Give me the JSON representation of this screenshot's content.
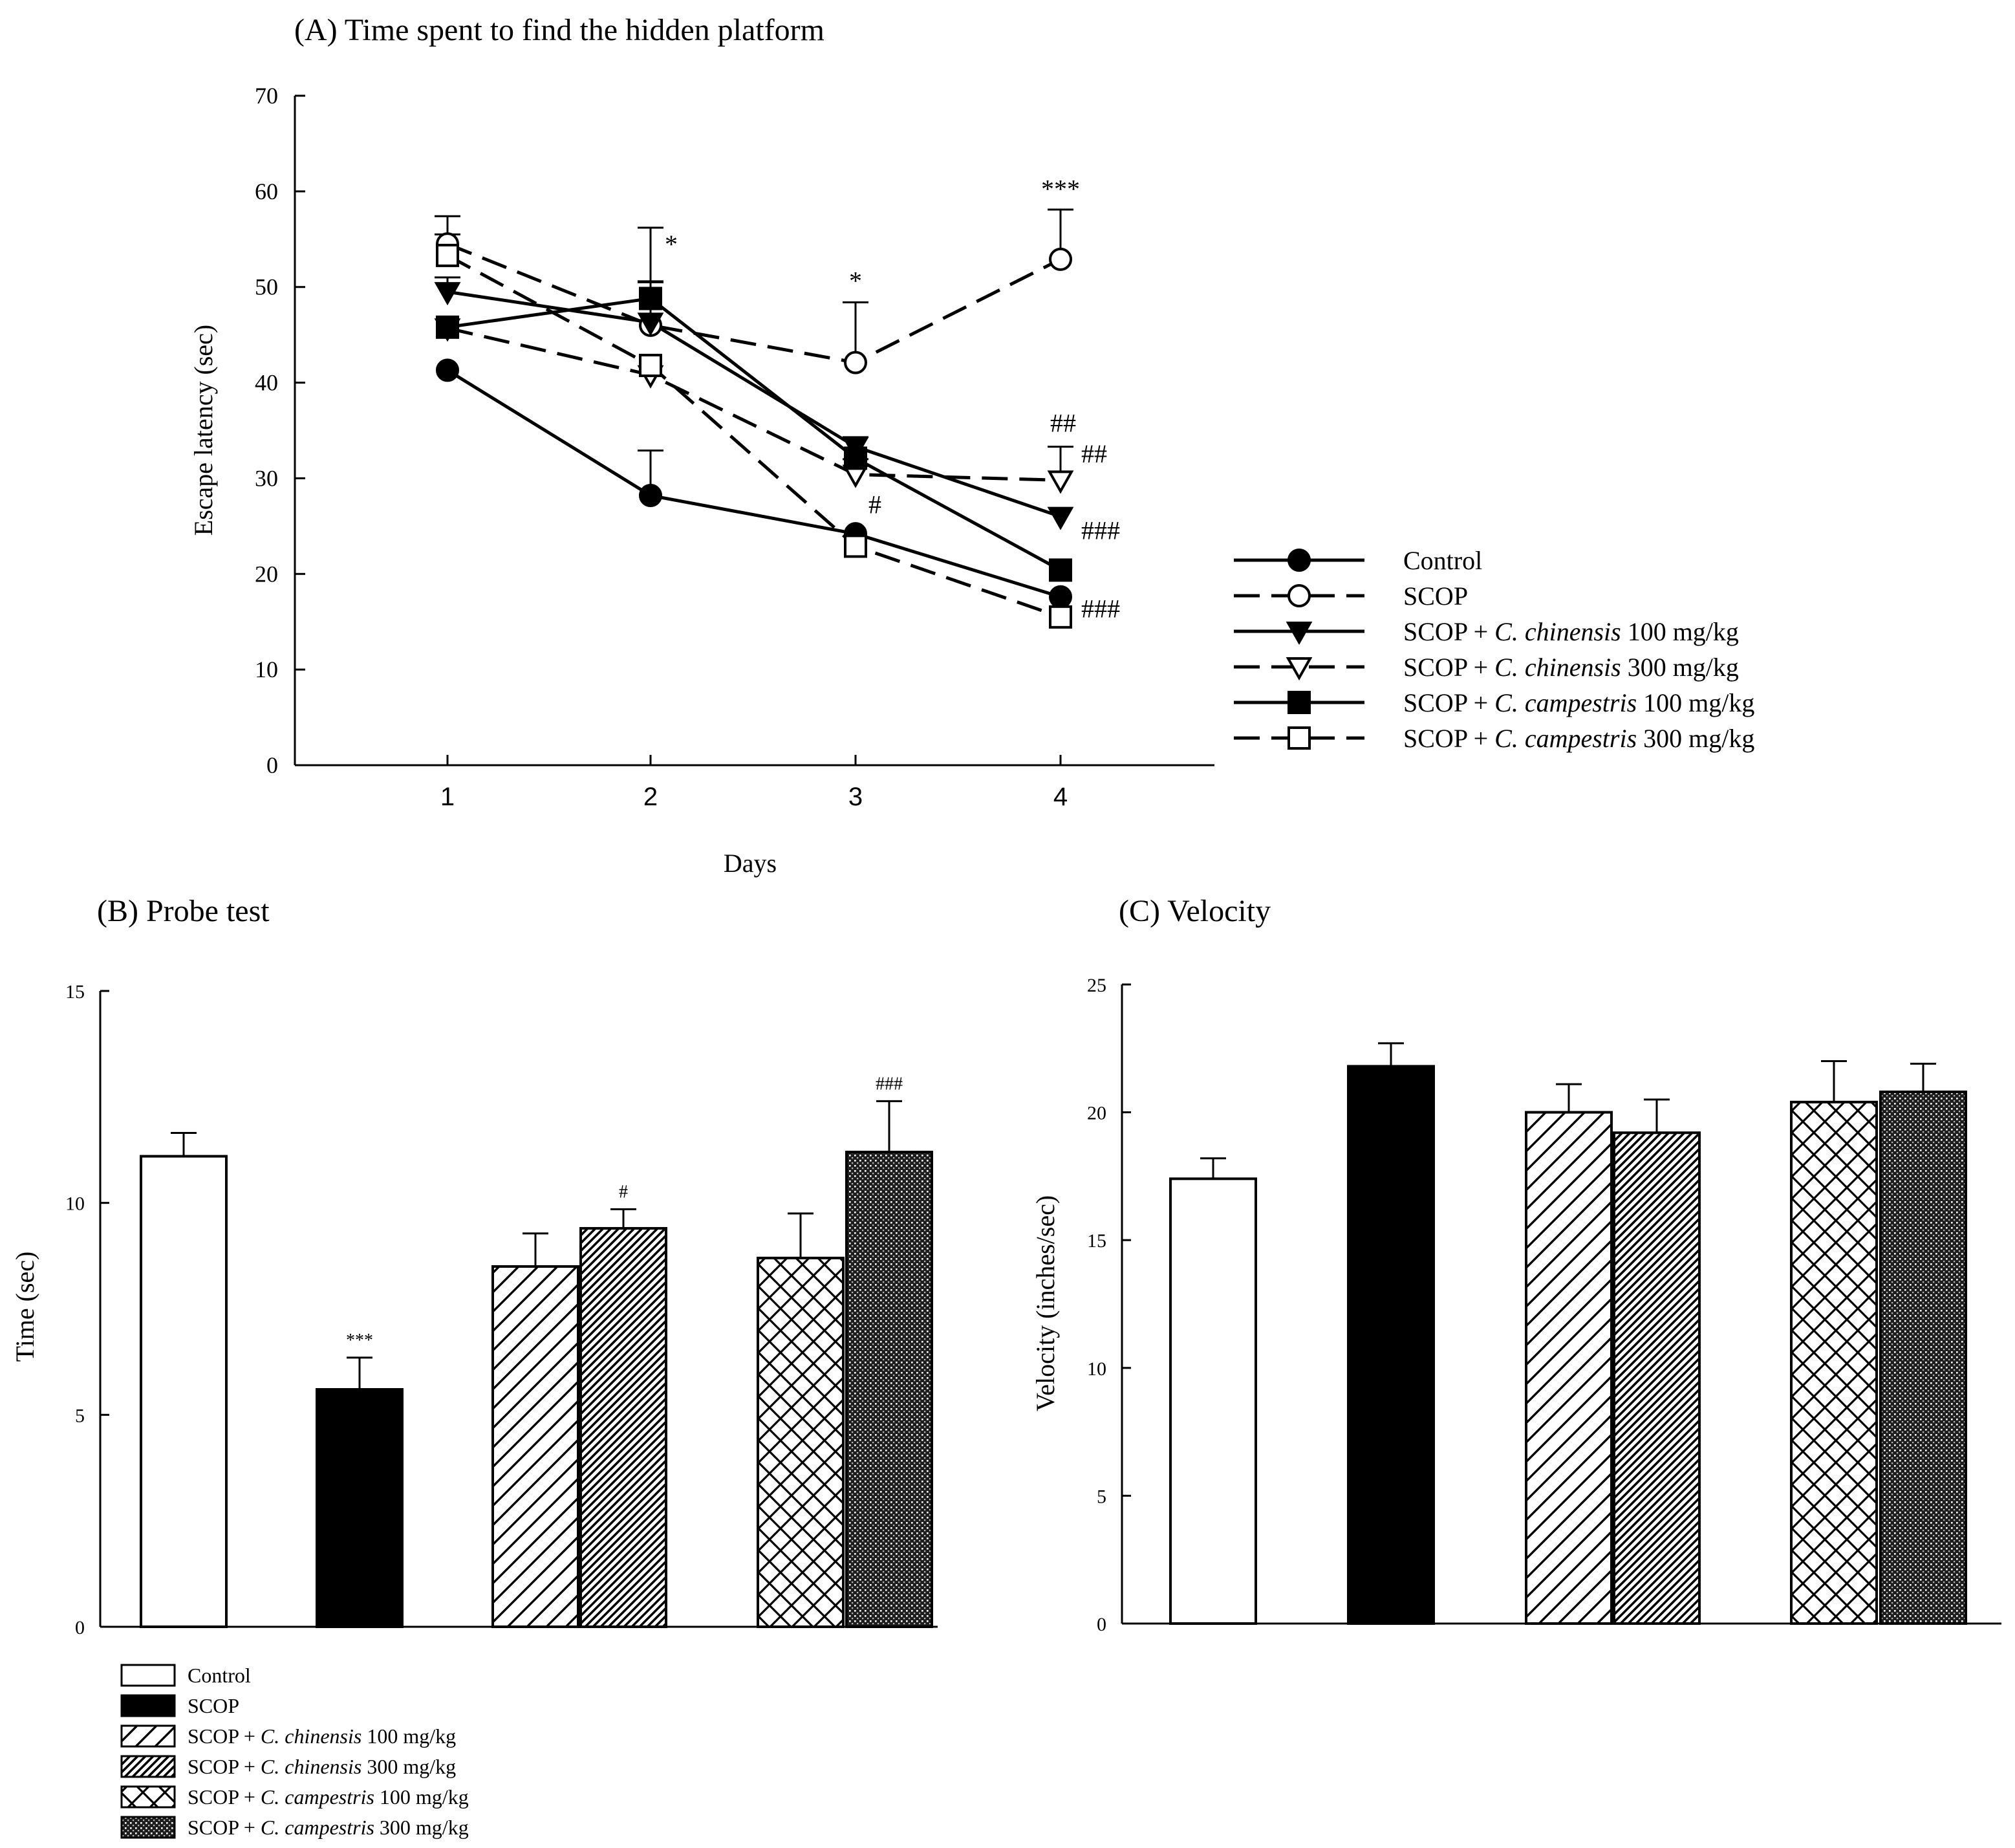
{
  "chart_data": [
    {
      "panel": "A",
      "type": "line",
      "title": "(A) Time spent to find the hidden platform",
      "xlabel": "Days",
      "ylabel": "Escape latency (sec)",
      "x": [
        1,
        2,
        3,
        4
      ],
      "xticks": [
        "1",
        "2",
        "3",
        "4"
      ],
      "ylim": [
        0,
        70
      ],
      "yticks": [
        "0",
        "10",
        "20",
        "30",
        "40",
        "50",
        "60",
        "70"
      ],
      "grid": false,
      "legend_position": "right",
      "series": [
        {
          "name": "Control",
          "marker": "filled-circle",
          "line": "solid",
          "values": [
            41.3,
            28.2,
            24.2,
            17.6
          ],
          "errors": [
            0,
            4.7,
            0,
            0
          ]
        },
        {
          "name": "SCOP",
          "marker": "open-circle",
          "line": "dashed",
          "values": [
            54.5,
            46.0,
            42.1,
            52.9
          ],
          "errors": [
            1.0,
            10.2,
            6.3,
            5.2
          ]
        },
        {
          "name": "SCOP + C. chinensis 100 mg/kg",
          "marker": "filled-triangle",
          "line": "solid",
          "values": [
            49.5,
            46.3,
            33.3,
            26.0
          ],
          "errors": [
            1.5,
            4.2,
            1.0,
            0
          ]
        },
        {
          "name": "SCOP + C. chinensis 300 mg/kg",
          "marker": "open-triangle",
          "line": "dashed",
          "values": [
            45.7,
            40.8,
            30.4,
            29.8
          ],
          "errors": [
            0,
            0,
            1.6,
            3.5
          ]
        },
        {
          "name": "SCOP + C. campestris 100 mg/kg",
          "marker": "filled-square",
          "line": "solid",
          "values": [
            45.8,
            48.8,
            32.1,
            20.4
          ],
          "errors": [
            0,
            1.8,
            0,
            0
          ]
        },
        {
          "name": "SCOP + C. campestris 300 mg/kg",
          "marker": "open-square",
          "line": "dashed",
          "values": [
            53.3,
            41.8,
            22.9,
            15.5
          ],
          "errors": [
            4.1,
            0,
            0,
            0
          ]
        }
      ],
      "legend": {
        "prefix": "SCOP + ",
        "entries": [
          {
            "plain": "Control",
            "species": "",
            "dose": ""
          },
          {
            "plain": "SCOP",
            "species": "",
            "dose": ""
          },
          {
            "plain": "",
            "species": "C. chinensis",
            "dose": " 100 mg/kg"
          },
          {
            "plain": "",
            "species": "C. chinensis",
            "dose": " 300 mg/kg"
          },
          {
            "plain": "",
            "species": "C. campestris",
            "dose": " 100 mg/kg"
          },
          {
            "plain": "",
            "species": "C. campestris",
            "dose": " 300 mg/kg"
          }
        ]
      },
      "annotations": [
        {
          "text": "*",
          "x": 2,
          "y": 54.5
        },
        {
          "text": "*",
          "x": 3,
          "y": 50.7
        },
        {
          "text": "***",
          "x": 4,
          "y": 60.3
        },
        {
          "text": "#",
          "x": 3,
          "y": 27.3
        },
        {
          "text": "##",
          "x": 4,
          "y": 35.8
        },
        {
          "text": "##",
          "x": 4,
          "y": 32.6
        },
        {
          "text": "###",
          "x": 4,
          "y": 24.6
        },
        {
          "text": "###",
          "x": 4,
          "y": 16.4
        }
      ]
    },
    {
      "panel": "B",
      "type": "bar",
      "title": "(B) Probe test",
      "xlabel": "",
      "ylabel": "Time (sec)",
      "ylim": [
        0,
        15
      ],
      "yticks": [
        "0",
        "5",
        "10",
        "15"
      ],
      "categories": [
        "Control",
        "SCOP",
        "SCOP + C. chinensis 100 mg/kg",
        "SCOP + C. chinensis 300 mg/kg",
        "SCOP + C. campestris 100 mg/kg",
        "SCOP + C. campestris 300 mg/kg"
      ],
      "values": [
        11.1,
        5.6,
        8.5,
        9.4,
        8.7,
        11.2
      ],
      "errors": [
        0.55,
        0.75,
        0.78,
        0.45,
        1.05,
        1.2
      ],
      "annotations": [
        "",
        "***",
        "",
        "#",
        "",
        "###"
      ],
      "legend": {
        "prefix": "SCOP + ",
        "entries": [
          {
            "plain": "Control",
            "species": "",
            "dose": ""
          },
          {
            "plain": "SCOP",
            "species": "",
            "dose": ""
          },
          {
            "plain": "",
            "species": "C. chinensis",
            "dose": " 100 mg/kg"
          },
          {
            "plain": "",
            "species": "C. chinensis",
            "dose": " 300 mg/kg"
          },
          {
            "plain": "",
            "species": "C. campestris",
            "dose": " 100 mg/kg"
          },
          {
            "plain": "",
            "species": "C. campestris",
            "dose": " 300 mg/kg"
          }
        ]
      },
      "legend_position": "bottom"
    },
    {
      "panel": "C",
      "type": "bar",
      "title": "(C) Velocity",
      "xlabel": "",
      "ylabel": "Velocity (inches/sec)",
      "ylim": [
        0,
        25
      ],
      "yticks": [
        "0",
        "5",
        "10",
        "15",
        "20",
        "25"
      ],
      "categories": [
        "Control",
        "SCOP",
        "SCOP + C. chinensis 100 mg/kg",
        "SCOP + C. chinensis 300 mg/kg",
        "SCOP + C. campestris 100 mg/kg",
        "SCOP + C. campestris 300 mg/kg"
      ],
      "values": [
        17.4,
        21.8,
        20.0,
        19.2,
        20.4,
        20.8
      ],
      "errors": [
        0.8,
        0.9,
        1.1,
        1.3,
        1.6,
        1.1
      ]
    }
  ],
  "fills": [
    "white",
    "black",
    "diag-wide",
    "diag-dense",
    "cross",
    "dots"
  ]
}
